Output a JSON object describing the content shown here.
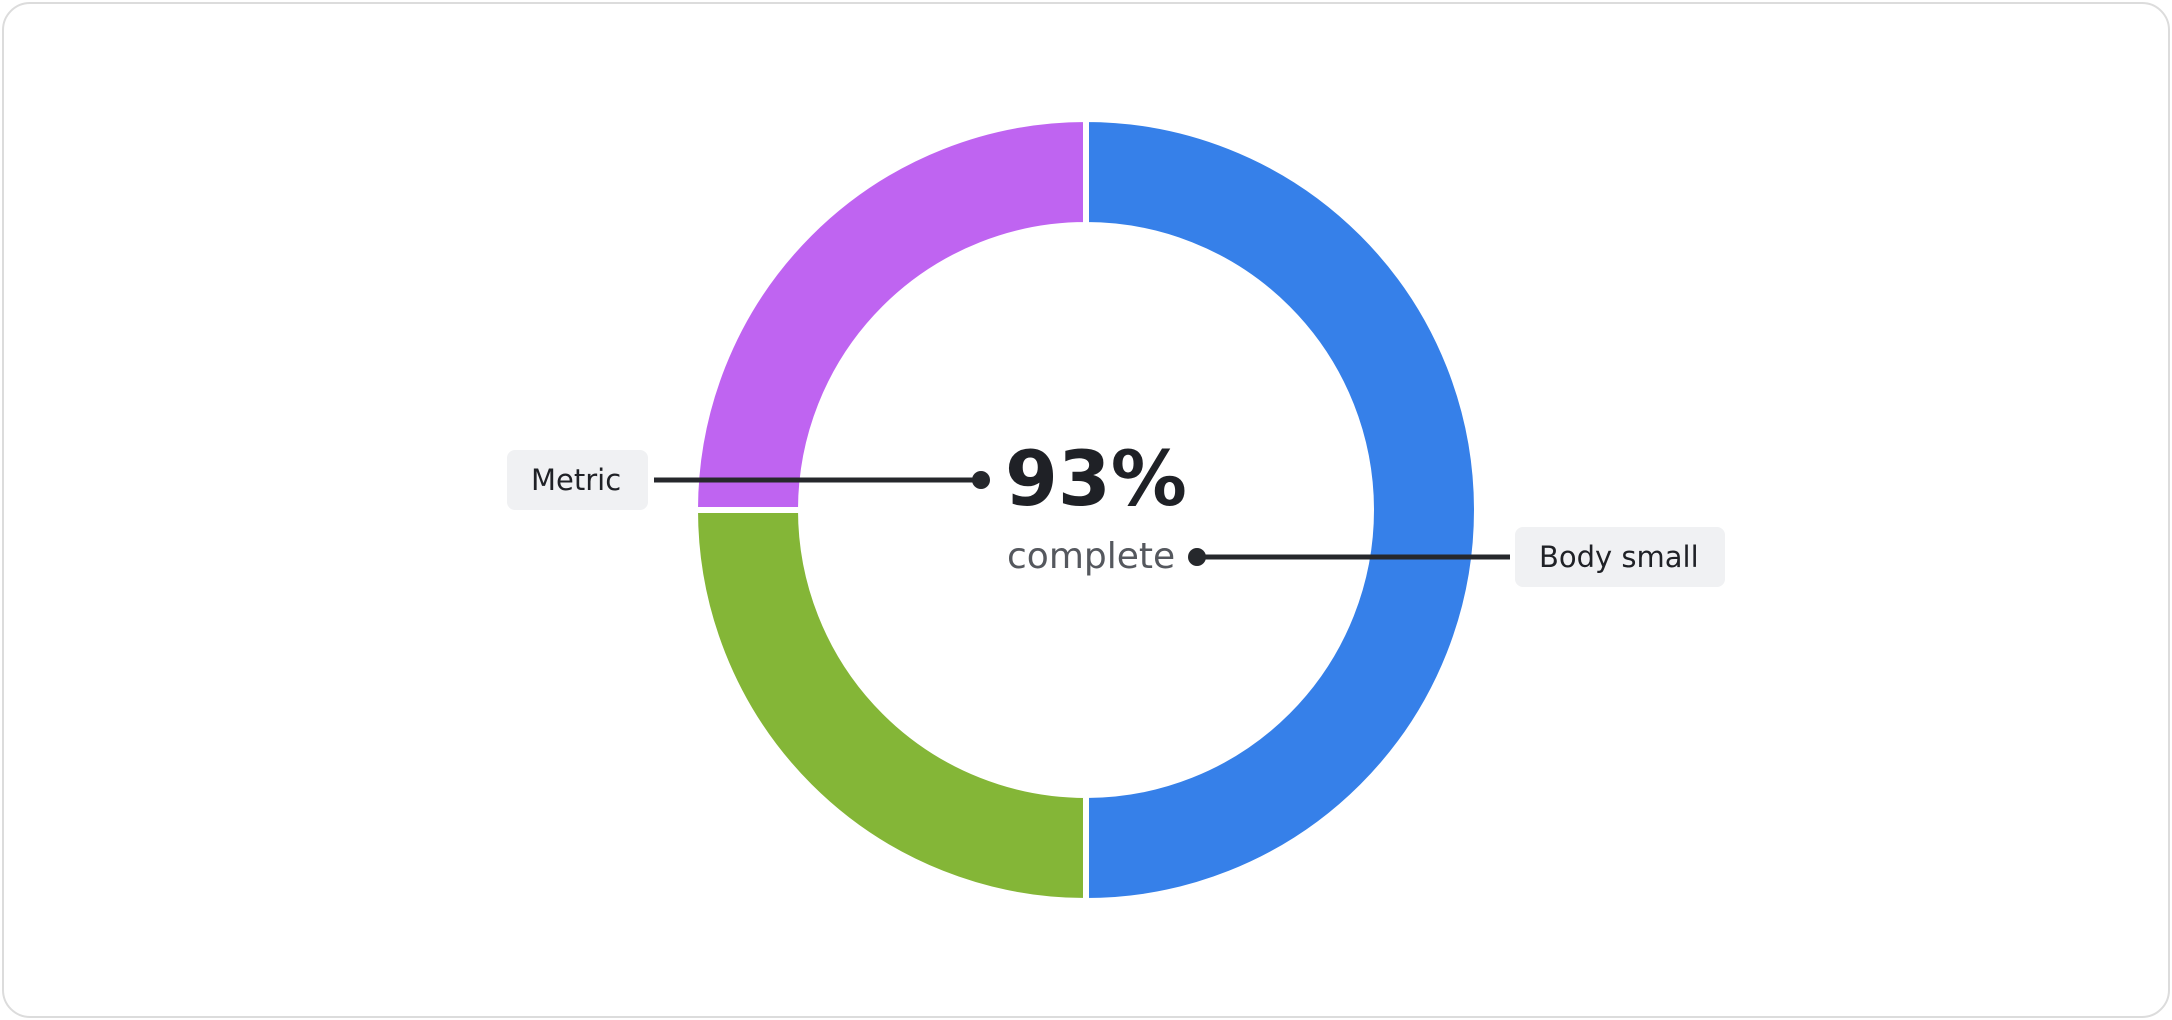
{
  "chart_data": {
    "type": "pie",
    "variant": "donut",
    "slices": [
      {
        "value": 50,
        "color": "#3680e9"
      },
      {
        "value": 25,
        "color": "#84b637"
      },
      {
        "value": 25,
        "color": "#bf64f1"
      }
    ],
    "center_value": "93%",
    "center_caption": "complete"
  },
  "annotations": {
    "metric_label": "Metric",
    "body_label": "Body small"
  }
}
